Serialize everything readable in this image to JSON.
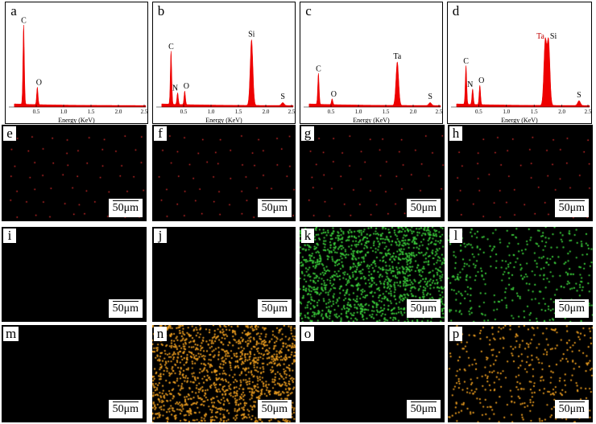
{
  "spectra": [
    {
      "letter": "a",
      "xlabel": "Energy (KeV)",
      "ticks": [
        "0.5",
        "1.0",
        "1.5",
        "2.0",
        "2.5"
      ],
      "peaks": [
        {
          "label": "C",
          "x": 0.27,
          "h": 0.82,
          "color": "#000"
        },
        {
          "label": "O",
          "x": 0.52,
          "h": 0.18,
          "color": "#000"
        }
      ]
    },
    {
      "letter": "b",
      "xlabel": "Energy (KeV)",
      "ticks": [
        "0.5",
        "1.0",
        "1.5",
        "2.0",
        "2.5"
      ],
      "peaks": [
        {
          "label": "C",
          "x": 0.27,
          "h": 0.55,
          "color": "#000"
        },
        {
          "label": "N",
          "x": 0.39,
          "h": 0.12,
          "color": "#000"
        },
        {
          "label": "O",
          "x": 0.52,
          "h": 0.14,
          "color": "#000"
        },
        {
          "label": "Si",
          "x": 1.74,
          "h": 0.68,
          "color": "#000"
        },
        {
          "label": "S",
          "x": 2.31,
          "h": 0.03,
          "color": "#000"
        }
      ]
    },
    {
      "letter": "c",
      "xlabel": "Energy (KeV)",
      "ticks": [
        "0.5",
        "1.0",
        "1.5",
        "2.0",
        "2.5"
      ],
      "peaks": [
        {
          "label": "C",
          "x": 0.27,
          "h": 0.32,
          "color": "#000"
        },
        {
          "label": "O",
          "x": 0.52,
          "h": 0.06,
          "color": "#000"
        },
        {
          "label": "Ta",
          "x": 1.71,
          "h": 0.45,
          "color": "#000"
        },
        {
          "label": "S",
          "x": 2.31,
          "h": 0.03,
          "color": "#000"
        }
      ]
    },
    {
      "letter": "d",
      "xlabel": "Energy (KeV)",
      "ticks": [
        "0.5",
        "1.0",
        "1.5",
        "2.0",
        "2.5"
      ],
      "peaks": [
        {
          "label": "C",
          "x": 0.27,
          "h": 0.4,
          "color": "#000"
        },
        {
          "label": "N",
          "x": 0.39,
          "h": 0.16,
          "color": "#000"
        },
        {
          "label": "O",
          "x": 0.52,
          "h": 0.2,
          "color": "#000"
        },
        {
          "label": "Ta",
          "x": 1.7,
          "h": 0.66,
          "color": "#c00000"
        },
        {
          "label": "Si",
          "x": 1.76,
          "h": 0.66,
          "color": "#000"
        },
        {
          "label": "S",
          "x": 2.31,
          "h": 0.05,
          "color": "#000"
        }
      ]
    }
  ],
  "maps": [
    {
      "letter": "e",
      "scale": "50μm",
      "dot_color": "#e83030",
      "density": "sparse"
    },
    {
      "letter": "f",
      "scale": "50μm",
      "dot_color": "#e83030",
      "density": "sparse"
    },
    {
      "letter": "g",
      "scale": "50μm",
      "dot_color": "#e83030",
      "density": "sparse"
    },
    {
      "letter": "h",
      "scale": "50μm",
      "dot_color": "#e83030",
      "density": "sparse"
    },
    {
      "letter": "i",
      "scale": "50μm",
      "dot_color": "#000000",
      "density": "none"
    },
    {
      "letter": "j",
      "scale": "50μm",
      "dot_color": "#000000",
      "density": "none"
    },
    {
      "letter": "k",
      "scale": "50μm",
      "dot_color": "#3cd23c",
      "density": "dense"
    },
    {
      "letter": "l",
      "scale": "50μm",
      "dot_color": "#3cd23c",
      "density": "medium"
    },
    {
      "letter": "m",
      "scale": "50μm",
      "dot_color": "#000000",
      "density": "none"
    },
    {
      "letter": "n",
      "scale": "50μm",
      "dot_color": "#f0a020",
      "density": "dense"
    },
    {
      "letter": "o",
      "scale": "50μm",
      "dot_color": "#000000",
      "density": "none"
    },
    {
      "letter": "p",
      "scale": "50μm",
      "dot_color": "#f0a020",
      "density": "medium"
    }
  ],
  "spectrum_fill": "#ee0000"
}
